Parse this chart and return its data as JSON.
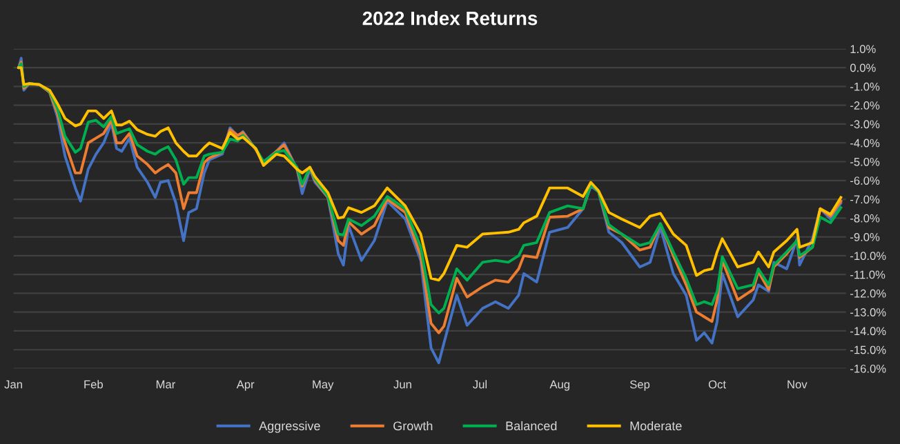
{
  "chart_data": {
    "type": "line",
    "title": "2022 Index Returns",
    "x": [
      "2022-01-03",
      "2022-01-04",
      "2022-01-05",
      "2022-01-07",
      "2022-01-11",
      "2022-01-15",
      "2022-01-18",
      "2022-01-21",
      "2022-01-25",
      "2022-01-27",
      "2022-01-30",
      "2022-02-02",
      "2022-02-05",
      "2022-02-08",
      "2022-02-10",
      "2022-02-12",
      "2022-02-15",
      "2022-02-18",
      "2022-02-22",
      "2022-02-25",
      "2022-02-27",
      "2022-03-02",
      "2022-03-05",
      "2022-03-08",
      "2022-03-10",
      "2022-03-13",
      "2022-03-16",
      "2022-03-18",
      "2022-03-23",
      "2022-03-26",
      "2022-03-29",
      "2022-03-31",
      "2022-04-05",
      "2022-04-08",
      "2022-04-13",
      "2022-04-16",
      "2022-04-21",
      "2022-04-23",
      "2022-04-26",
      "2022-04-28",
      "2022-05-03",
      "2022-05-07",
      "2022-05-09",
      "2022-05-11",
      "2022-05-16",
      "2022-05-21",
      "2022-05-26",
      "2022-06-02",
      "2022-06-08",
      "2022-06-12",
      "2022-06-15",
      "2022-06-17",
      "2022-06-22",
      "2022-06-26",
      "2022-07-02",
      "2022-07-07",
      "2022-07-12",
      "2022-07-16",
      "2022-07-18",
      "2022-07-23",
      "2022-07-28",
      "2022-08-04",
      "2022-08-10",
      "2022-08-13",
      "2022-08-16",
      "2022-08-20",
      "2022-08-25",
      "2022-09-01",
      "2022-09-05",
      "2022-09-09",
      "2022-09-14",
      "2022-09-19",
      "2022-09-23",
      "2022-09-26",
      "2022-09-29",
      "2022-10-01",
      "2022-10-03",
      "2022-10-09",
      "2022-10-15",
      "2022-10-17",
      "2022-10-21",
      "2022-10-23",
      "2022-10-28",
      "2022-11-01",
      "2022-11-02",
      "2022-11-07",
      "2022-11-10",
      "2022-11-14",
      "2022-11-18"
    ],
    "series": [
      {
        "name": "Aggressive",
        "color": "#4472c4",
        "values": [
          0.0,
          0.5,
          -1.2,
          -0.85,
          -0.9,
          -1.3,
          -2.6,
          -4.7,
          -6.4,
          -7.1,
          -5.4,
          -4.6,
          -4.0,
          -2.95,
          -4.3,
          -4.45,
          -3.75,
          -5.3,
          -6.1,
          -6.9,
          -6.1,
          -6.0,
          -7.2,
          -9.2,
          -7.7,
          -7.5,
          -5.6,
          -4.9,
          -4.6,
          -3.2,
          -3.65,
          -3.4,
          -4.35,
          -5.0,
          -4.45,
          -4.0,
          -5.4,
          -6.7,
          -5.4,
          -6.1,
          -6.9,
          -9.9,
          -10.5,
          -8.4,
          -10.25,
          -9.2,
          -7.1,
          -8.05,
          -10.25,
          -14.9,
          -15.7,
          -14.65,
          -12.1,
          -13.7,
          -12.8,
          -12.45,
          -12.8,
          -12.1,
          -10.95,
          -11.4,
          -8.75,
          -8.5,
          -7.5,
          -6.3,
          -6.6,
          -8.75,
          -9.3,
          -10.6,
          -10.35,
          -8.5,
          -10.95,
          -12.1,
          -14.5,
          -14.1,
          -14.65,
          -13.5,
          -10.95,
          -13.25,
          -12.35,
          -11.55,
          -11.9,
          -10.35,
          -10.7,
          -9.1,
          -10.5,
          -9.1,
          -7.5,
          -8.05,
          -7.2
        ]
      },
      {
        "name": "Growth",
        "color": "#ed7d31",
        "values": [
          0.0,
          0.3,
          -1.1,
          -0.85,
          -0.9,
          -1.3,
          -2.4,
          -4.0,
          -5.6,
          -5.6,
          -4.0,
          -3.75,
          -3.5,
          -2.8,
          -4.0,
          -4.0,
          -3.5,
          -4.7,
          -5.15,
          -5.6,
          -5.4,
          -5.15,
          -5.6,
          -7.5,
          -6.65,
          -6.65,
          -5.05,
          -4.8,
          -4.5,
          -3.3,
          -3.6,
          -3.45,
          -4.35,
          -5.05,
          -4.45,
          -4.1,
          -5.4,
          -6.3,
          -5.3,
          -6.0,
          -6.9,
          -9.2,
          -9.45,
          -8.2,
          -8.85,
          -8.4,
          -7.0,
          -7.7,
          -10.0,
          -13.6,
          -14.1,
          -13.75,
          -11.2,
          -12.2,
          -11.65,
          -11.3,
          -11.4,
          -10.7,
          -10.0,
          -10.1,
          -7.95,
          -7.9,
          -7.5,
          -6.2,
          -6.6,
          -8.5,
          -8.85,
          -9.7,
          -9.55,
          -8.3,
          -10.0,
          -11.55,
          -13.0,
          -13.25,
          -13.5,
          -12.35,
          -10.25,
          -12.35,
          -11.8,
          -10.85,
          -11.8,
          -10.6,
          -9.9,
          -9.2,
          -10.1,
          -9.55,
          -7.5,
          -7.9,
          -7.1
        ]
      },
      {
        "name": "Balanced",
        "color": "#00b050",
        "values": [
          0.0,
          0.2,
          -1.0,
          -0.85,
          -0.9,
          -1.25,
          -2.15,
          -3.65,
          -4.5,
          -4.3,
          -2.9,
          -2.8,
          -3.15,
          -2.6,
          -3.5,
          -3.4,
          -3.25,
          -4.1,
          -4.45,
          -4.6,
          -4.4,
          -4.2,
          -4.9,
          -6.2,
          -5.85,
          -5.85,
          -4.7,
          -4.6,
          -4.5,
          -3.8,
          -3.9,
          -3.6,
          -4.3,
          -5.0,
          -4.5,
          -4.4,
          -5.3,
          -6.2,
          -5.3,
          -5.9,
          -6.85,
          -8.85,
          -8.9,
          -8.05,
          -8.4,
          -7.9,
          -6.85,
          -7.5,
          -9.55,
          -12.6,
          -13.05,
          -12.8,
          -10.7,
          -11.3,
          -10.35,
          -10.25,
          -10.35,
          -10.0,
          -9.45,
          -9.3,
          -7.7,
          -7.35,
          -7.5,
          -6.2,
          -6.6,
          -8.35,
          -8.85,
          -9.45,
          -9.3,
          -8.3,
          -9.8,
          -11.2,
          -12.6,
          -12.45,
          -12.6,
          -11.9,
          -10.05,
          -11.75,
          -11.55,
          -10.7,
          -11.55,
          -10.5,
          -9.8,
          -9.2,
          -10.0,
          -9.55,
          -7.95,
          -8.25,
          -7.45
        ]
      },
      {
        "name": "Moderate",
        "color": "#ffc000",
        "values": [
          0.0,
          0.0,
          -0.9,
          -0.85,
          -0.9,
          -1.2,
          -1.9,
          -2.7,
          -3.1,
          -3.0,
          -2.3,
          -2.3,
          -2.7,
          -2.3,
          -3.05,
          -3.05,
          -2.85,
          -3.3,
          -3.55,
          -3.65,
          -3.4,
          -3.2,
          -4.0,
          -4.45,
          -4.7,
          -4.7,
          -4.25,
          -4.0,
          -4.3,
          -3.45,
          -3.8,
          -3.7,
          -4.3,
          -5.2,
          -4.6,
          -4.7,
          -5.4,
          -5.6,
          -5.3,
          -5.8,
          -6.65,
          -8.0,
          -7.95,
          -7.45,
          -7.7,
          -7.35,
          -6.4,
          -7.35,
          -8.85,
          -11.2,
          -11.3,
          -10.95,
          -9.45,
          -9.55,
          -8.85,
          -8.8,
          -8.75,
          -8.6,
          -8.25,
          -7.9,
          -6.4,
          -6.4,
          -6.85,
          -6.1,
          -6.55,
          -7.7,
          -8.05,
          -8.5,
          -7.9,
          -7.75,
          -8.85,
          -9.45,
          -11.05,
          -10.8,
          -10.7,
          -9.8,
          -9.1,
          -10.6,
          -10.35,
          -9.8,
          -10.6,
          -9.8,
          -9.2,
          -8.6,
          -9.55,
          -9.3,
          -7.5,
          -7.8,
          -6.9
        ]
      }
    ],
    "xlim": [
      "2022-01-01",
      "2022-11-20"
    ],
    "xticks": [
      {
        "value": "2022-01-01",
        "label": "Jan"
      },
      {
        "value": "2022-02-01",
        "label": "Feb"
      },
      {
        "value": "2022-03-01",
        "label": "Mar"
      },
      {
        "value": "2022-04-01",
        "label": "Apr"
      },
      {
        "value": "2022-05-01",
        "label": "May"
      },
      {
        "value": "2022-06-01",
        "label": "Jun"
      },
      {
        "value": "2022-07-01",
        "label": "Jul"
      },
      {
        "value": "2022-08-01",
        "label": "Aug"
      },
      {
        "value": "2022-09-01",
        "label": "Sep"
      },
      {
        "value": "2022-10-01",
        "label": "Oct"
      },
      {
        "value": "2022-11-01",
        "label": "Nov"
      }
    ],
    "ylim": [
      -16,
      1
    ],
    "yticks": [
      {
        "value": 1,
        "label": "1.0%"
      },
      {
        "value": 0,
        "label": "0.0%"
      },
      {
        "value": -1,
        "label": "-1.0%"
      },
      {
        "value": -2,
        "label": "-2.0%"
      },
      {
        "value": -3,
        "label": "-3.0%"
      },
      {
        "value": -4,
        "label": "-4.0%"
      },
      {
        "value": -5,
        "label": "-5.0%"
      },
      {
        "value": -6,
        "label": "-6.0%"
      },
      {
        "value": -7,
        "label": "-7.0%"
      },
      {
        "value": -8,
        "label": "-8.0%"
      },
      {
        "value": -9,
        "label": "-9.0%"
      },
      {
        "value": -10,
        "label": "-10.0%"
      },
      {
        "value": -11,
        "label": "-11.0%"
      },
      {
        "value": -12,
        "label": "-12.0%"
      },
      {
        "value": -13,
        "label": "-13.0%"
      },
      {
        "value": -14,
        "label": "-14.0%"
      },
      {
        "value": -15,
        "label": "-15.0%"
      },
      {
        "value": -16,
        "label": "-16.0%"
      }
    ],
    "grid": "y",
    "legend": "bottom",
    "line_style": "solid",
    "marker": "none"
  }
}
